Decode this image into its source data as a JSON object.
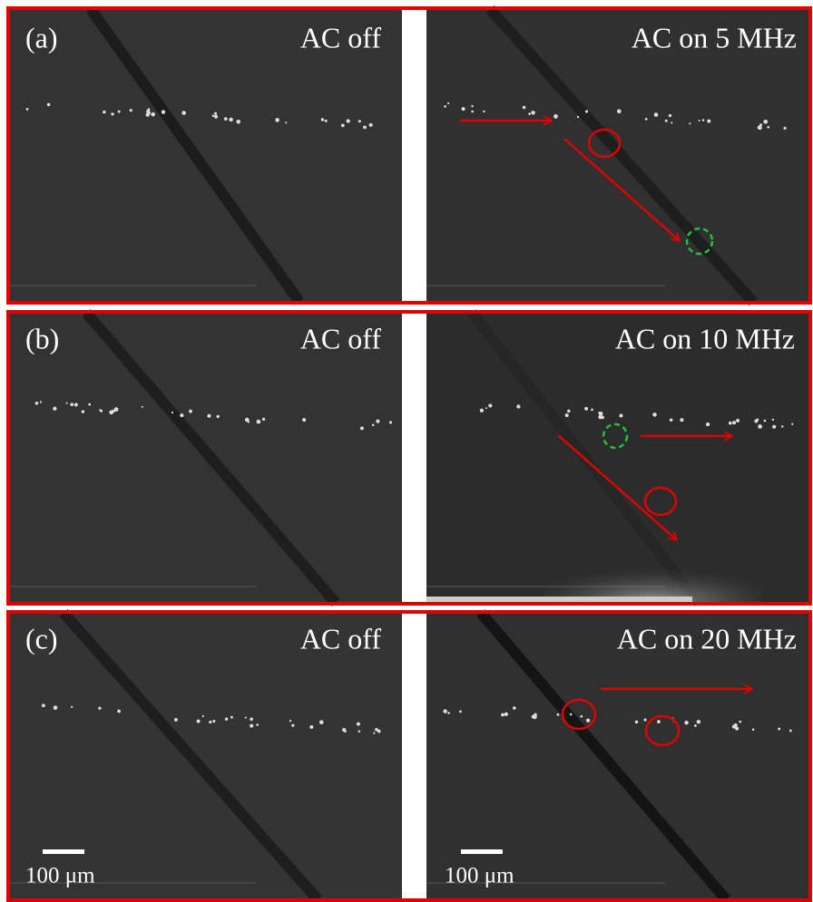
{
  "rows": [
    {
      "label": "(a)",
      "left": "AC off",
      "right": "AC on 5 MHz"
    },
    {
      "label": "(b)",
      "left": "AC off",
      "right": "AC on 10 MHz"
    },
    {
      "label": "(c)",
      "left": "AC off",
      "right": "AC on 20 MHz"
    }
  ],
  "scale_bars": [
    "100 μm",
    "100 μm"
  ]
}
